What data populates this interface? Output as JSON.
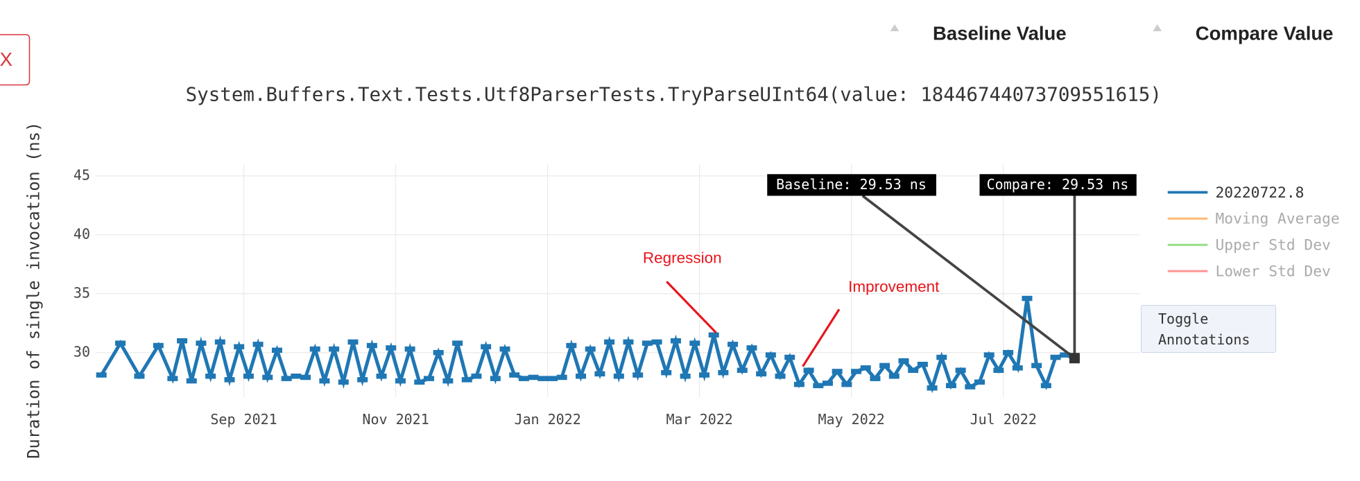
{
  "close_button": "X",
  "table_headers": [
    "Baseline Value",
    "Compare Value"
  ],
  "toggle_button": "Toggle Annotations",
  "chart_data": {
    "type": "line",
    "title": "System.Buffers.Text.Tests.Utf8ParserTests.TryParseUInt64(value: 18446744073709551615)",
    "y_label": "Duration of single invocation (ns)",
    "x": [
      "2021-07",
      "2021-07",
      "2021-07",
      "2021-07",
      "2021-08",
      "2021-08",
      "2021-08",
      "2021-08",
      "2021-08",
      "2021-08",
      "2021-08",
      "2021-08",
      "2021-09",
      "2021-09",
      "2021-09",
      "2021-09",
      "2021-09",
      "2021-09",
      "2021-09",
      "2021-09",
      "2021-10",
      "2021-10",
      "2021-10",
      "2021-10",
      "2021-10",
      "2021-10",
      "2021-10",
      "2021-10",
      "2021-11",
      "2021-11",
      "2021-11",
      "2021-11",
      "2021-11",
      "2021-11",
      "2021-11",
      "2021-11",
      "2021-12",
      "2021-12",
      "2021-12",
      "2021-12",
      "2021-12",
      "2021-12",
      "2021-12",
      "2021-12",
      "2022-01",
      "2022-01",
      "2022-01",
      "2022-01",
      "2022-01",
      "2022-01",
      "2022-01",
      "2022-01",
      "2022-02",
      "2022-02",
      "2022-02",
      "2022-02",
      "2022-02",
      "2022-02",
      "2022-02",
      "2022-02",
      "2022-03",
      "2022-03",
      "2022-03",
      "2022-03",
      "2022-03",
      "2022-03",
      "2022-03",
      "2022-03",
      "2022-04",
      "2022-04",
      "2022-04",
      "2022-04",
      "2022-04",
      "2022-04",
      "2022-04",
      "2022-04",
      "2022-05",
      "2022-05",
      "2022-05",
      "2022-05",
      "2022-05",
      "2022-05",
      "2022-05",
      "2022-05",
      "2022-06",
      "2022-06",
      "2022-06",
      "2022-06",
      "2022-06",
      "2022-06",
      "2022-06",
      "2022-06",
      "2022-07",
      "2022-07",
      "2022-07",
      "2022-07",
      "2022-07",
      "2022-07",
      "2022-07",
      "2022-07"
    ],
    "series": [
      {
        "name": "20220722.8",
        "color": "#1f77b4",
        "values": [
          28.1,
          30.8,
          28.0,
          30.6,
          27.8,
          31.0,
          27.6,
          30.8,
          28.0,
          30.9,
          27.7,
          30.5,
          28.0,
          30.7,
          27.9,
          30.2,
          27.8,
          28.0,
          27.9,
          30.3,
          27.6,
          30.3,
          27.5,
          30.9,
          27.7,
          30.6,
          28.0,
          30.4,
          27.6,
          30.3,
          27.5,
          27.8,
          30.0,
          27.6,
          30.8,
          27.7,
          28.0,
          30.5,
          27.8,
          30.3,
          28.1,
          27.8,
          27.9,
          27.8,
          27.8,
          27.9,
          30.6,
          28.0,
          30.3,
          28.2,
          30.9,
          28.0,
          30.9,
          28.1,
          30.8,
          30.9,
          28.3,
          31.0,
          28.0,
          30.8,
          28.1,
          31.5,
          28.3,
          30.7,
          28.5,
          30.4,
          28.2,
          29.8,
          28.0,
          29.6,
          27.3,
          28.5,
          27.2,
          27.4,
          28.4,
          27.3,
          28.4,
          28.7,
          27.8,
          28.9,
          28.0,
          29.3,
          28.5,
          29.0,
          27.0,
          29.6,
          27.2,
          28.5,
          27.1,
          27.5,
          29.8,
          28.5,
          30.0,
          28.7,
          34.6,
          28.9,
          27.2,
          29.6,
          29.8,
          29.53
        ]
      }
    ],
    "hidden_series": [
      {
        "name": "Moving Average",
        "color": "#ffbb78"
      },
      {
        "name": "Upper Std Dev",
        "color": "#98df8a"
      },
      {
        "name": "Lower Std Dev",
        "color": "#ff9896"
      }
    ],
    "annotations": [
      {
        "text": "Baseline: 29.53 ns"
      },
      {
        "text": "Compare: 29.53 ns"
      },
      {
        "text": "Regression",
        "color": "#e8141b"
      },
      {
        "text": "Improvement",
        "color": "#e8141b"
      }
    ],
    "xlim": [
      "2021-07",
      "2022-08"
    ],
    "xticks": [
      {
        "value": "2021-09",
        "label": "Sep 2021"
      },
      {
        "value": "2021-11",
        "label": "Nov 2021"
      },
      {
        "value": "2022-01",
        "label": "Jan 2022"
      },
      {
        "value": "2022-03",
        "label": "Mar 2022"
      },
      {
        "value": "2022-05",
        "label": "May 2022"
      },
      {
        "value": "2022-07",
        "label": "Jul 2022"
      }
    ],
    "ylim": [
      26,
      46
    ],
    "yticks": [
      30,
      35,
      40,
      45
    ],
    "grid": true,
    "legend": "right"
  }
}
